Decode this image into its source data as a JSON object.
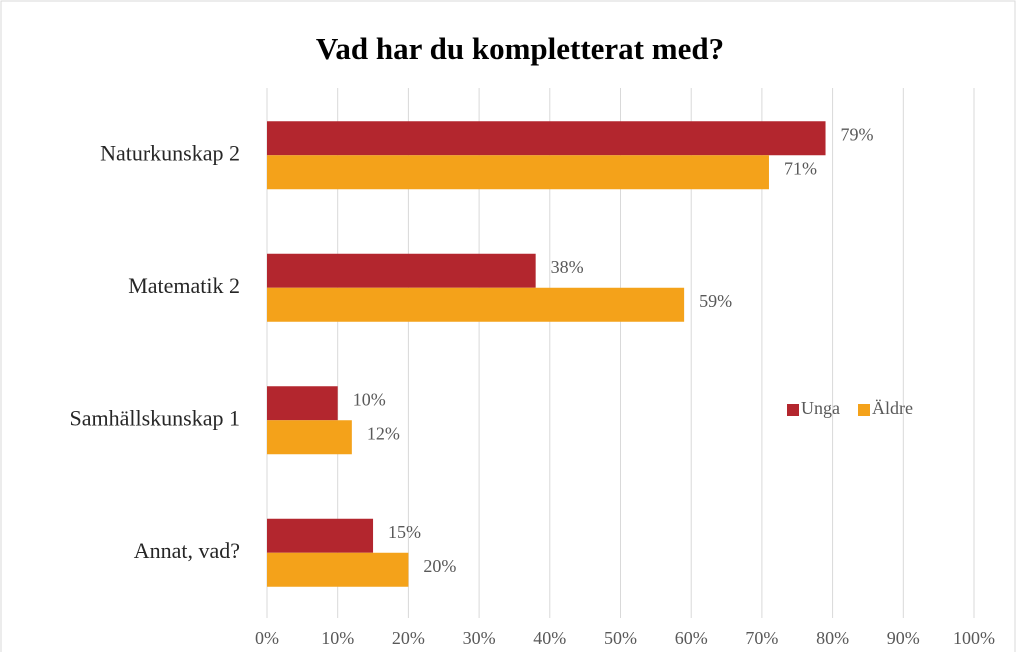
{
  "chart_data": {
    "type": "hbar",
    "title": "Vad har du kompletterat med?",
    "categories": [
      "Naturkunskap 2",
      "Matematik 2",
      "Samhällskunskap 1",
      "Annat, vad?"
    ],
    "series": [
      {
        "name": "Unga",
        "color": "#b3262e",
        "values": [
          79,
          38,
          10,
          15
        ],
        "value_labels": [
          "79%",
          "38%",
          "10%",
          "15%"
        ]
      },
      {
        "name": "Äldre",
        "color": "#f4a21a",
        "values": [
          71,
          59,
          12,
          20
        ],
        "value_labels": [
          "71%",
          "59%",
          "12%",
          "20%"
        ]
      }
    ],
    "xlim": [
      0,
      100
    ],
    "xticks": [
      {
        "value": 0,
        "label": "0%"
      },
      {
        "value": 10,
        "label": "10%"
      },
      {
        "value": 20,
        "label": "20%"
      },
      {
        "value": 30,
        "label": "30%"
      },
      {
        "value": 40,
        "label": "40%"
      },
      {
        "value": 50,
        "label": "50%"
      },
      {
        "value": 60,
        "label": "60%"
      },
      {
        "value": 70,
        "label": "70%"
      },
      {
        "value": 80,
        "label": "80%"
      },
      {
        "value": 90,
        "label": "90%"
      },
      {
        "value": 100,
        "label": "100%"
      }
    ],
    "grid": true,
    "legend": "right"
  }
}
